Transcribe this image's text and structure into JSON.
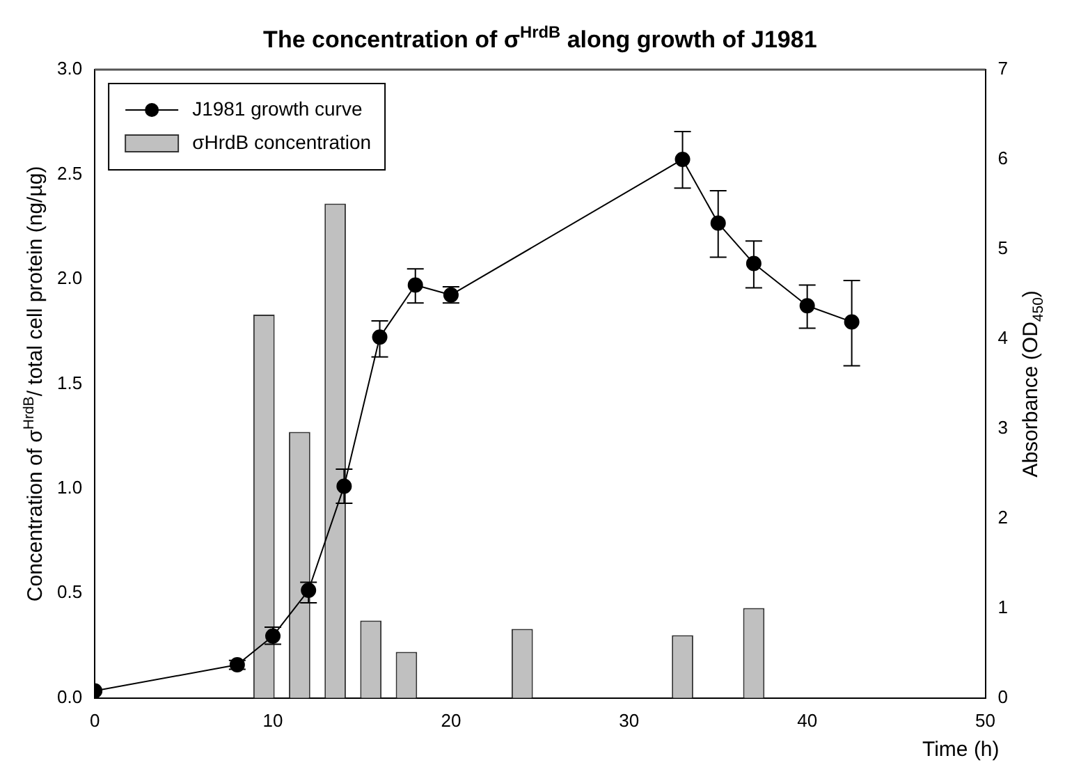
{
  "chart_data": {
    "type": "bar",
    "title": "The concentration of σ$^{HrdB}$ along growth of J1981",
    "xlabel": "Time (h)",
    "ylabel": "Concentration of σ$^{HrdB}$/ total cell protein (ng/µg)",
    "y2label": "Absorbance (OD$_{450}$)",
    "xlim": [
      0,
      50
    ],
    "xticks": [
      0,
      10,
      20,
      30,
      40,
      50
    ],
    "ylim": [
      0,
      3
    ],
    "yticks": [
      {
        "value": 0,
        "label": "0.0"
      },
      {
        "value": 0.5,
        "label": "0.5"
      },
      {
        "value": 1,
        "label": "1.0"
      },
      {
        "value": 1.5,
        "label": "1.5"
      },
      {
        "value": 2,
        "label": "2.0"
      },
      {
        "value": 2.5,
        "label": "2.5"
      },
      {
        "value": 3,
        "label": "3.0"
      }
    ],
    "y2lim": [
      0,
      7
    ],
    "y2ticks": [
      0,
      1,
      2,
      3,
      4,
      5,
      6,
      7
    ],
    "grid": false,
    "legend": "top left",
    "series": [
      {
        "name": "J1981 growth curve",
        "type": "line",
        "axis": "y2",
        "color": "#000000",
        "marker": "circle",
        "line_style": "solid",
        "x": [
          0,
          8,
          10,
          12,
          14,
          16,
          18,
          20,
          33,
          35,
          37,
          40,
          42.5
        ],
        "values": [
          0.08,
          0.37,
          0.69,
          1.2,
          2.36,
          4.02,
          4.6,
          4.49,
          6.0,
          5.29,
          4.84,
          4.37,
          4.19
        ],
        "errors": [
          null,
          0.05,
          [
            0.6,
            0.79
          ],
          [
            1.06,
            1.29
          ],
          [
            2.17,
            2.55
          ],
          [
            3.8,
            4.2
          ],
          [
            4.4,
            4.78
          ],
          [
            4.4,
            4.58
          ],
          [
            5.68,
            6.31
          ],
          [
            4.91,
            5.65
          ],
          [
            4.57,
            5.09
          ],
          [
            4.12,
            4.6
          ],
          [
            3.7,
            4.65
          ]
        ]
      },
      {
        "name": "σHrdB concentration",
        "color": "#c0c0c0",
        "x": [
          9.5,
          11.5,
          13.5,
          15.5,
          17.5,
          24,
          33,
          37
        ],
        "values": [
          1.83,
          1.27,
          2.36,
          0.37,
          0.22,
          0.33,
          0.3,
          0.43
        ]
      }
    ]
  }
}
